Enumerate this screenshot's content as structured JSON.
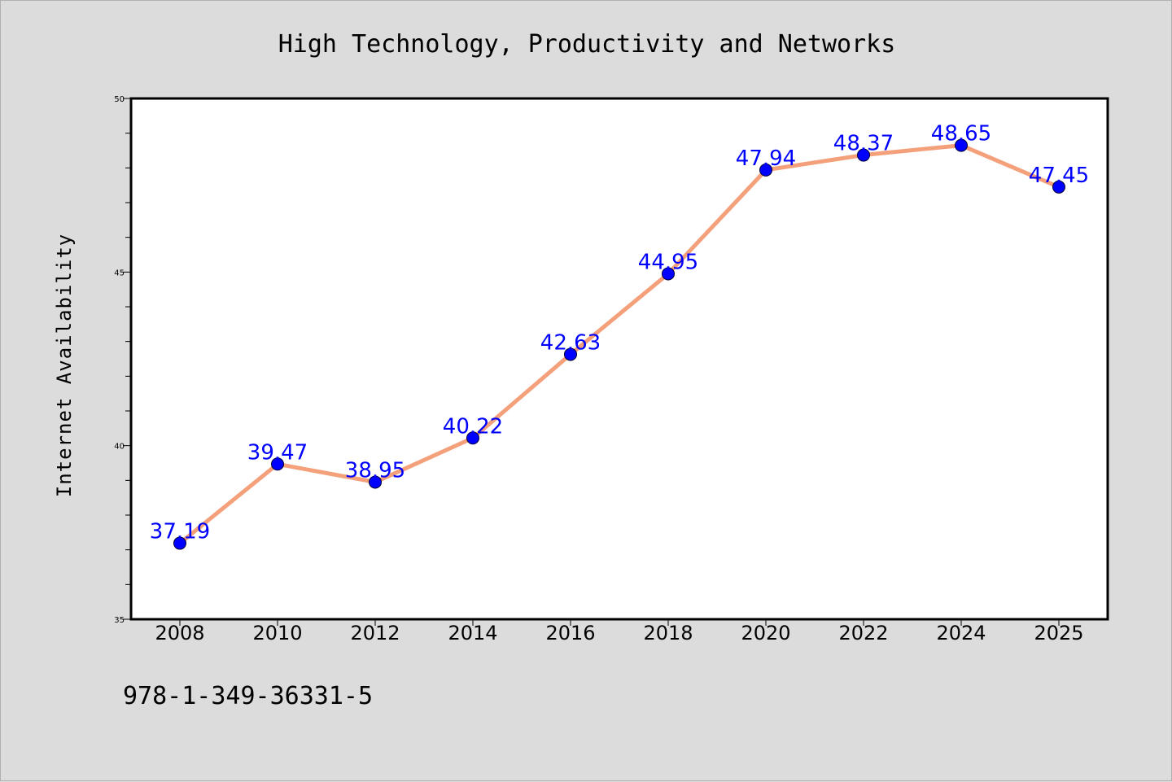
{
  "chart_data": {
    "type": "line",
    "title": "High Technology, Productivity and Networks",
    "xlabel": "",
    "ylabel": "Internet Availability",
    "categories": [
      "2008",
      "2010",
      "2012",
      "2014",
      "2016",
      "2018",
      "2020",
      "2022",
      "2024",
      "2025"
    ],
    "series": [
      {
        "values": [
          37.19,
          39.47,
          38.95,
          40.22,
          42.63,
          44.95,
          47.94,
          48.37,
          48.65,
          47.45
        ],
        "line_color": "#f4a07a",
        "marker_color": "#0000ff"
      }
    ],
    "data_labels": [
      "37.19",
      "39.47",
      "38.95",
      "40.22",
      "42.63",
      "44.95",
      "47.94",
      "48.37",
      "48.65",
      "47.45"
    ],
    "ylim": [
      35,
      50
    ],
    "yticks": [
      35,
      40,
      45,
      50
    ],
    "grid": false,
    "legend": "none"
  },
  "footer": {
    "isbn": "978-1-349-36331-5"
  }
}
